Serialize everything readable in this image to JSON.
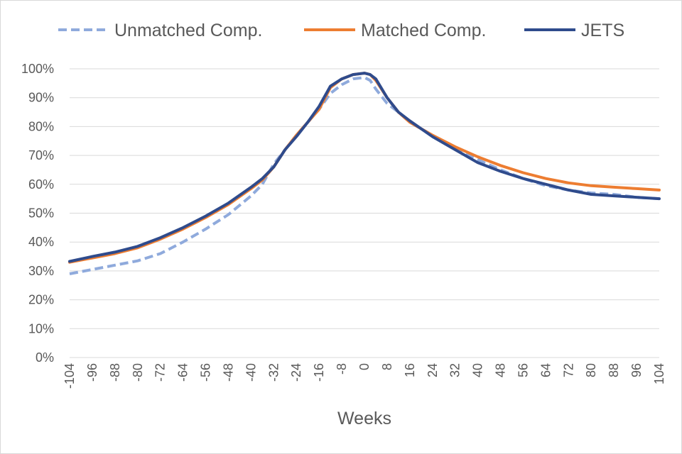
{
  "chart_data": {
    "type": "line",
    "title": "",
    "xlabel": "Weeks",
    "ylabel": "",
    "xlim": [
      -104,
      104
    ],
    "ylim": [
      0,
      100
    ],
    "x_ticks": [
      -104,
      -96,
      -88,
      -80,
      -72,
      -64,
      -56,
      -48,
      -40,
      -32,
      -24,
      -16,
      -8,
      0,
      8,
      16,
      24,
      32,
      40,
      48,
      56,
      64,
      72,
      80,
      88,
      96,
      104
    ],
    "y_ticks": [
      0,
      10,
      20,
      30,
      40,
      50,
      60,
      70,
      80,
      90,
      100
    ],
    "y_tick_labels": [
      "0%",
      "10%",
      "20%",
      "30%",
      "40%",
      "50%",
      "60%",
      "70%",
      "80%",
      "90%",
      "100%"
    ],
    "grid": true,
    "legend_position": "top",
    "series": [
      {
        "name": "Unmatched Comp.",
        "color": "#8faadc",
        "style": "dashed",
        "x": [
          -104,
          -96,
          -88,
          -80,
          -72,
          -64,
          -56,
          -48,
          -40,
          -36,
          -32,
          -28,
          -24,
          -20,
          -16,
          -12,
          -8,
          -4,
          0,
          2,
          4,
          8,
          12,
          16,
          24,
          32,
          40,
          48,
          56,
          64,
          72,
          80,
          88,
          96,
          104
        ],
        "y": [
          29,
          30.5,
          32,
          33.5,
          36,
          40,
          44.5,
          49.5,
          56,
          60,
          67,
          72,
          77,
          81.5,
          86,
          91.5,
          94.5,
          96.5,
          97,
          96,
          93,
          88,
          85,
          81.5,
          77,
          72.5,
          68.5,
          65,
          62,
          59.5,
          58,
          57,
          56.5,
          55.5,
          55
        ]
      },
      {
        "name": "Matched Comp.",
        "color": "#ed7d31",
        "style": "solid",
        "x": [
          -104,
          -96,
          -88,
          -80,
          -72,
          -64,
          -56,
          -48,
          -40,
          -36,
          -32,
          -28,
          -24,
          -20,
          -16,
          -12,
          -8,
          -4,
          0,
          2,
          4,
          8,
          12,
          16,
          24,
          32,
          40,
          48,
          56,
          64,
          72,
          80,
          88,
          96,
          104
        ],
        "y": [
          33,
          34.5,
          36,
          38,
          41,
          44.5,
          48.5,
          53,
          58.5,
          61.5,
          66,
          72,
          77,
          81.5,
          86,
          93.5,
          96.5,
          98,
          98.5,
          98,
          96,
          90,
          85,
          81.5,
          77,
          73,
          69.5,
          66.5,
          64,
          62,
          60.5,
          59.5,
          59,
          58.5,
          58
        ]
      },
      {
        "name": "JETS",
        "color": "#2f4b8c",
        "style": "solid",
        "x": [
          -104,
          -96,
          -88,
          -80,
          -72,
          -64,
          -56,
          -48,
          -40,
          -36,
          -32,
          -28,
          -24,
          -20,
          -16,
          -12,
          -8,
          -4,
          0,
          2,
          4,
          8,
          12,
          16,
          24,
          32,
          40,
          48,
          56,
          64,
          72,
          80,
          88,
          96,
          104
        ],
        "y": [
          33.3,
          35,
          36.5,
          38.5,
          41.5,
          45,
          49,
          53.5,
          59,
          62,
          66,
          72,
          76.5,
          81.5,
          87,
          94,
          96.5,
          98,
          98.5,
          98,
          96.5,
          90,
          85,
          82,
          76.5,
          72,
          67.5,
          64.5,
          62,
          60,
          58,
          56.5,
          56,
          55.5,
          55
        ]
      }
    ]
  }
}
